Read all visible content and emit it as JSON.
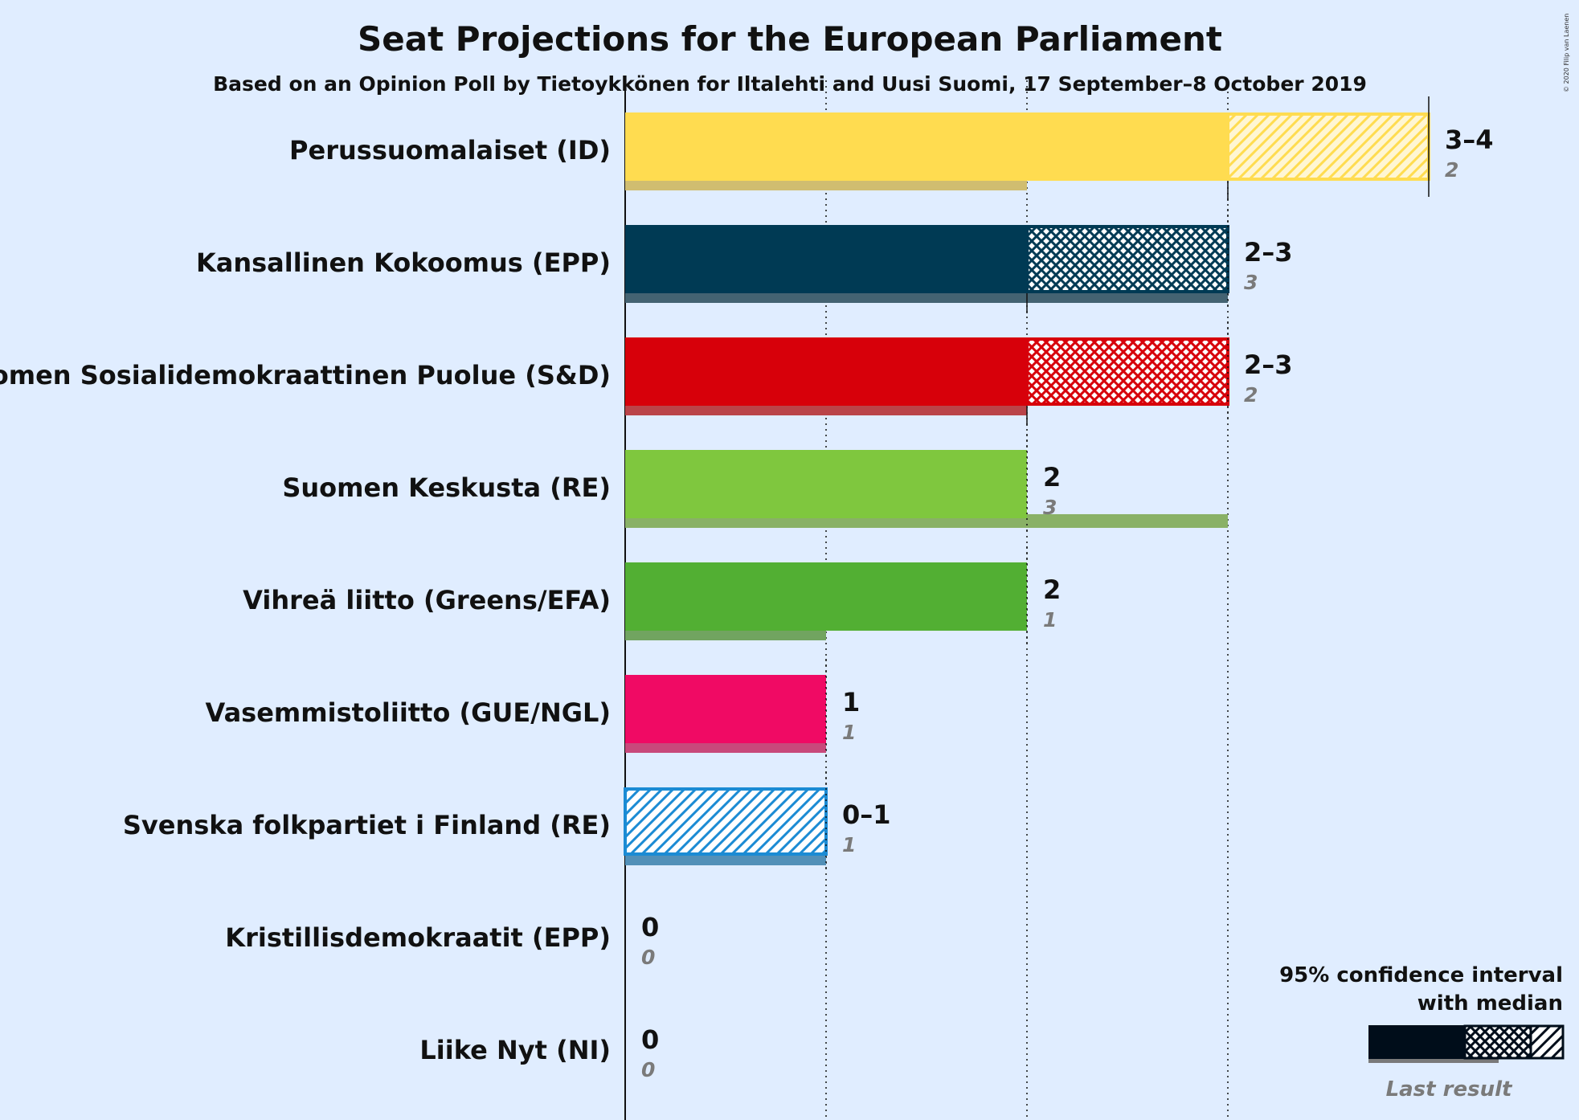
{
  "title": "Seat Projections for the European Parliament",
  "subtitle": "Based on an Opinion Poll by Tietoykkönen for Iltalehti and Uusi Suomi, 17 September–8 October 2019",
  "copyright": "© 2020 Filip van Laenen",
  "legend": {
    "line1": "95% confidence interval",
    "line2": "with median",
    "last_result": "Last result"
  },
  "chart_data": {
    "type": "bar",
    "orientation": "horizontal",
    "x_unit": "seats",
    "xlim": [
      0,
      4
    ],
    "gridlines": [
      1,
      2,
      3
    ],
    "parties": [
      {
        "name": "Perussuomalaiset (ID)",
        "color": "#ffdc50",
        "low": 3,
        "median": 3,
        "high": 4,
        "range_label": "3–4",
        "last": 2
      },
      {
        "name": "Kansallinen Kokoomus (EPP)",
        "color": "#003a54",
        "low": 2,
        "median": 2,
        "high": 3,
        "range_label": "2–3",
        "last": 3
      },
      {
        "name": "Suomen Sosialidemokraattinen Puolue (S&D)",
        "color": "#d7000a",
        "low": 2,
        "median": 2,
        "high": 3,
        "range_label": "2–3",
        "last": 2
      },
      {
        "name": "Suomen Keskusta (RE)",
        "color": "#7fc73e",
        "low": 2,
        "median": 2,
        "high": 2,
        "range_label": "2",
        "last": 3
      },
      {
        "name": "Vihreä liitto (Greens/EFA)",
        "color": "#52af33",
        "low": 2,
        "median": 2,
        "high": 2,
        "range_label": "2",
        "last": 1
      },
      {
        "name": "Vasemmistoliitto (GUE/NGL)",
        "color": "#f00a64",
        "low": 1,
        "median": 1,
        "high": 1,
        "range_label": "1",
        "last": 1
      },
      {
        "name": "Svenska folkpartiet i Finland (RE)",
        "color": "#1b8bd4",
        "low": 0,
        "median": 0,
        "high": 1,
        "range_label": "0–1",
        "last": 1
      },
      {
        "name": "Kristillisdemokraatit (EPP)",
        "color": "#1f4f96",
        "low": 0,
        "median": 0,
        "high": 0,
        "range_label": "0",
        "last": 0
      },
      {
        "name": "Liike Nyt (NI)",
        "color": "#333333",
        "low": 0,
        "median": 0,
        "high": 0,
        "range_label": "0",
        "last": 0
      }
    ]
  }
}
